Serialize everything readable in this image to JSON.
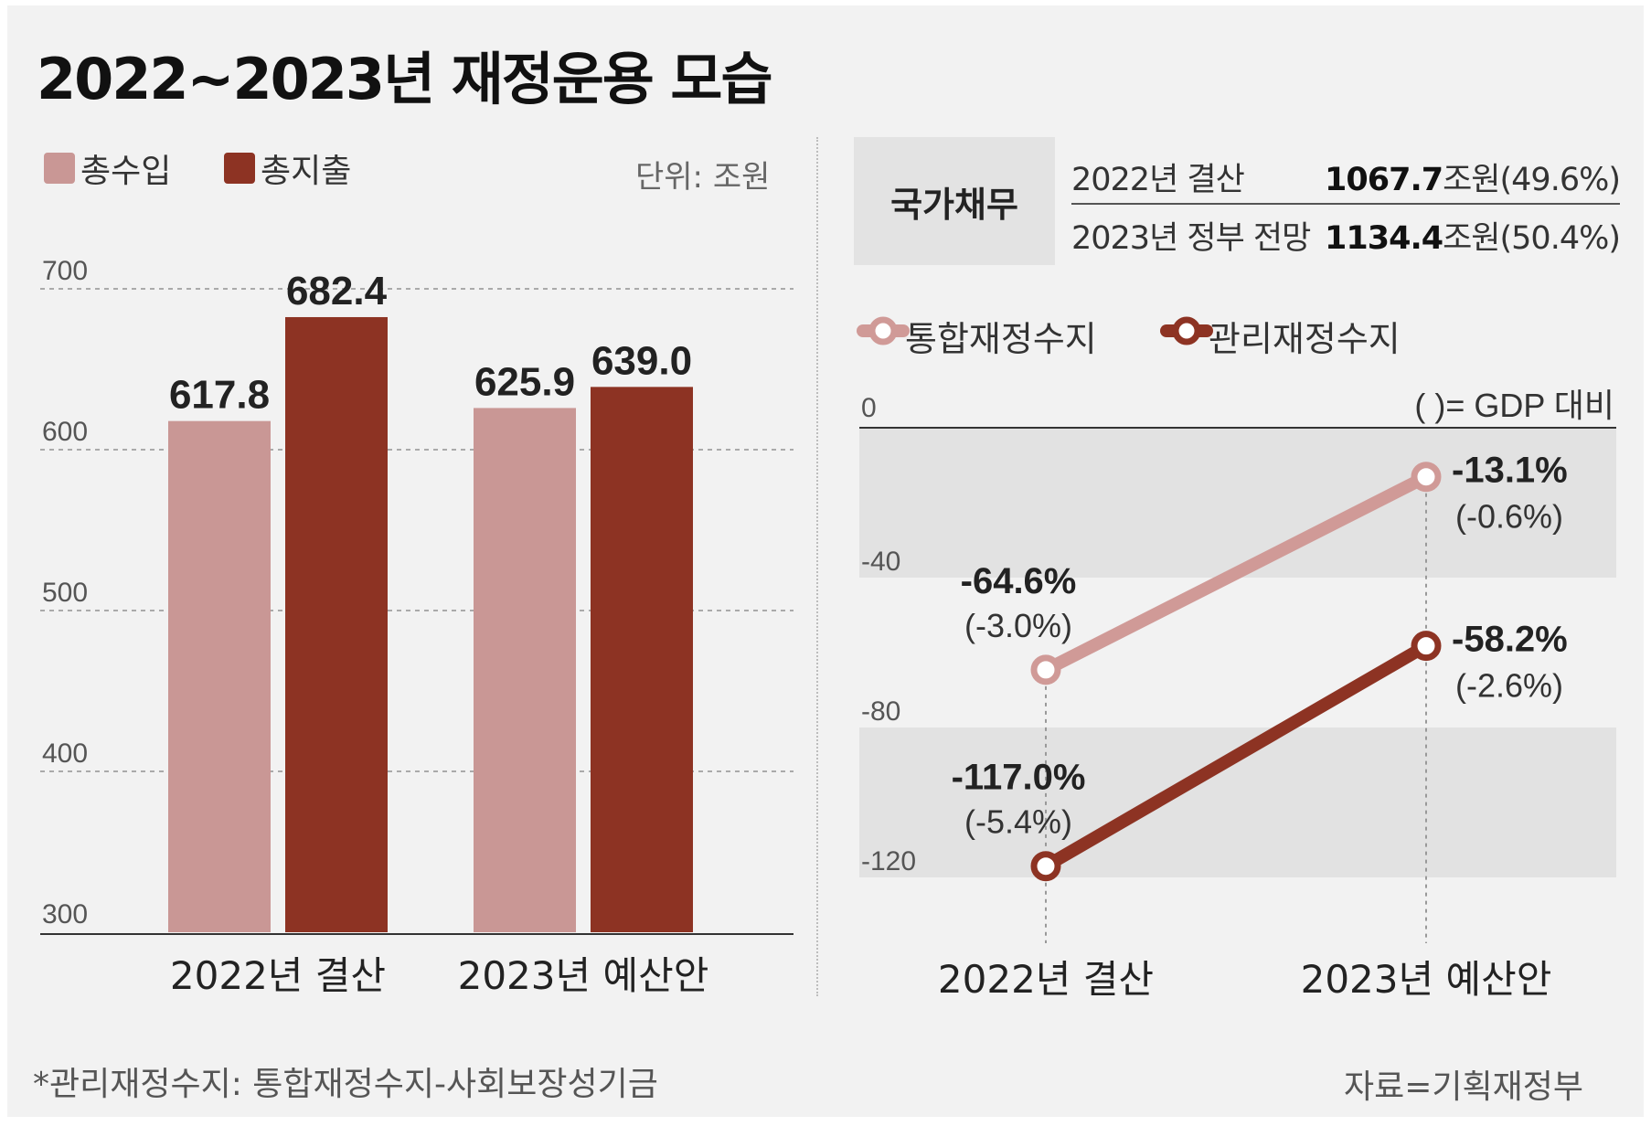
{
  "title": "2022~2023년 재정운용 모습",
  "left_legend": [
    {
      "name": "총수입",
      "color": "#c99795"
    },
    {
      "name": "총지출",
      "color": "#8d3323"
    }
  ],
  "unit_label": "단위: 조원",
  "debt": {
    "box_label": "국가채무",
    "rows": [
      {
        "label": "2022년 결산",
        "value": "1067.7",
        "unit": "조원",
        "ratio": "(49.6%)"
      },
      {
        "label": "2023년 정부 전망",
        "value": "1134.4",
        "unit": "조원",
        "ratio": "(50.4%)"
      }
    ]
  },
  "right_legend": [
    {
      "name": "통합재정수지",
      "color": "#d09a97"
    },
    {
      "name": "관리재정수지",
      "color": "#8d3323"
    }
  ],
  "gdp_note": "( )= GDP 대비",
  "footnote": "*관리재정수지: 통합재정수지-사회보장성기금",
  "source": "자료=기획재정부",
  "chart_data": [
    {
      "type": "bar",
      "categories": [
        "2022년 결산",
        "2023년 예산안"
      ],
      "series": [
        {
          "name": "총수입",
          "color": "#c99795",
          "values": [
            617.8,
            625.9
          ],
          "labels": [
            "617.8",
            "625.9"
          ]
        },
        {
          "name": "총지출",
          "color": "#8d3323",
          "values": [
            682.4,
            639.0
          ],
          "labels": [
            "682.4",
            "639.0"
          ]
        }
      ],
      "ylim": [
        300,
        700
      ],
      "yticks": [
        300,
        400,
        500,
        600,
        700
      ],
      "ytick_labels": [
        "300",
        "400",
        "500",
        "600",
        "700"
      ],
      "grid": true
    },
    {
      "type": "line",
      "categories": [
        "2022년 결산",
        "2023년 예산안"
      ],
      "series": [
        {
          "name": "통합재정수지",
          "color": "#d09a97",
          "values": [
            -64.6,
            -13.1
          ],
          "labels": [
            "-64.6%",
            "-13.1%"
          ],
          "gdp": [
            "(-3.0%)",
            "(-0.6%)"
          ]
        },
        {
          "name": "관리재정수지",
          "color": "#8d3323",
          "values": [
            -117.0,
            -58.2
          ],
          "labels": [
            "-117.0%",
            "-58.2%"
          ],
          "gdp": [
            "(-5.4%)",
            "(-2.6%)"
          ]
        }
      ],
      "ylim": [
        -140,
        0
      ],
      "yticks": [
        0,
        -40,
        -80,
        -120
      ],
      "ytick_labels": [
        "0",
        "-40",
        "-80",
        "-120"
      ]
    }
  ]
}
